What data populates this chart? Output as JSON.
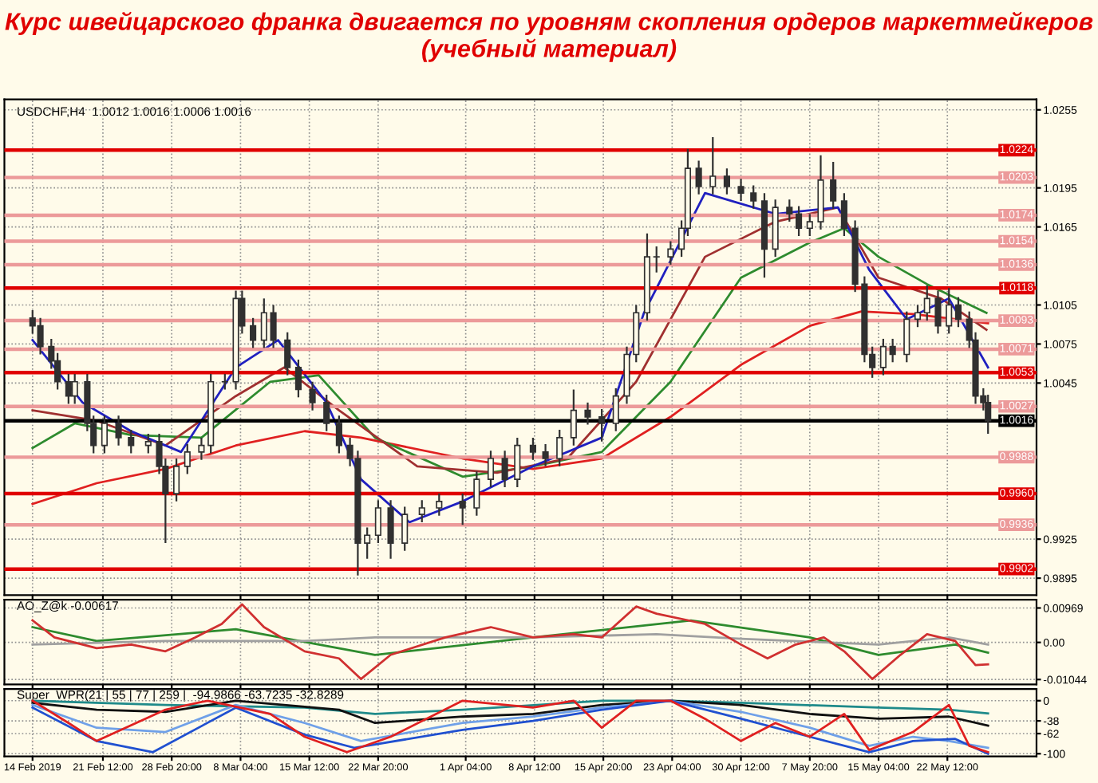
{
  "chart_data": [
    {
      "type": "candlestick",
      "title": "Курс швейцарского франка двигается по уровням скопления ордеров маркетмейкеров (учебный материал)",
      "annotations": [
        "USDCHF,H4  1.0012 1.0016 1.0006 1.0016"
      ],
      "color": "#303030",
      "grid": true,
      "tick_labels": "y",
      "x": [
        "2019-02-14T00:00",
        "2019-02-14T20:00",
        "2019-02-16T00:00",
        "2019-02-16T16:00",
        "2019-02-17T20:00",
        "2019-02-18T12:00",
        "2019-02-19T20:00",
        "2019-02-20T12:00",
        "2019-02-21T16:00",
        "2019-02-23T04:00",
        "2019-02-24T12:00",
        "2019-02-26T08:00",
        "2019-02-27T12:00",
        "2019-02-28T04:00",
        "2019-03-01T08:00",
        "2019-03-02T12:00",
        "2019-03-04T00:00",
        "2019-03-05T00:00",
        "2019-03-06T12:00",
        "2019-03-07T16:00",
        "2019-03-08T08:00",
        "2019-03-09T12:00",
        "2019-03-10T16:00",
        "2019-03-11T16:00",
        "2019-03-13T04:00",
        "2019-03-14T08:00",
        "2019-03-15T20:00",
        "2019-03-17T08:00",
        "2019-03-18T16:00",
        "2019-03-19T20:00",
        "2019-03-20T16:00",
        "2019-03-21T16:00",
        "2019-03-22T20:00",
        "2019-03-24T04:00",
        "2019-03-25T16:00",
        "2019-03-27T12:00",
        "2019-03-29T08:00",
        "2019-03-31T20:00",
        "2019-04-02T08:00",
        "2019-04-03T20:00",
        "2019-04-05T08:00",
        "2019-04-06T16:00",
        "2019-04-08T08:00",
        "2019-04-09T16:00",
        "2019-04-11T04:00",
        "2019-04-12T16:00",
        "2019-04-14T04:00",
        "2019-04-15T16:00",
        "2019-04-17T04:00",
        "2019-04-18T08:00",
        "2019-04-19T08:00",
        "2019-04-20T12:00",
        "2019-04-21T12:00",
        "2019-04-23T00:00",
        "2019-04-24T04:00",
        "2019-04-24T20:00",
        "2019-04-26T00:00",
        "2019-04-27T12:00",
        "2019-04-29T00:00",
        "2019-04-30T12:00",
        "2019-05-01T20:00",
        "2019-05-03T00:00",
        "2019-05-04T04:00",
        "2019-05-05T16:00",
        "2019-05-06T16:00",
        "2019-05-07T20:00",
        "2019-05-09T00:00",
        "2019-05-10T08:00",
        "2019-05-11T12:00",
        "2019-05-12T16:00",
        "2019-05-13T16:00",
        "2019-05-14T12:00",
        "2019-05-15T16:00",
        "2019-05-16T16:00",
        "2019-05-18T04:00",
        "2019-05-19T08:00",
        "2019-05-20T08:00",
        "2019-05-21T12:00",
        "2019-05-22T16:00",
        "2019-05-23T16:00",
        "2019-05-24T20:00",
        "2019-05-25T12:00",
        "2019-05-26T08:00",
        "2019-05-26T20:00"
      ],
      "ohlc": [
        [
          1.0095,
          1.0101,
          1.0083,
          1.0089
        ],
        [
          1.0089,
          1.0095,
          1.0067,
          1.0073
        ],
        [
          1.0073,
          1.0079,
          1.0056,
          1.0062
        ],
        [
          1.0062,
          1.0068,
          1.004,
          1.0046
        ],
        [
          1.0046,
          1.0052,
          1.0029,
          1.0035
        ],
        [
          1.0035,
          1.0052,
          1.0029,
          1.0046
        ],
        [
          1.0046,
          1.0052,
          1.0008,
          1.0014
        ],
        [
          1.0014,
          1.002,
          0.9991,
          0.9997
        ],
        [
          0.9997,
          1.002,
          0.9991,
          1.0014
        ],
        [
          1.0014,
          1.002,
          0.9997,
          1.0003
        ],
        [
          1.0003,
          1.0009,
          0.9991,
          0.9997
        ],
        [
          0.9997,
          1.0006,
          0.9991,
          1.0
        ],
        [
          1.0,
          1.0006,
          0.9975,
          0.9981
        ],
        [
          0.9981,
          0.9987,
          0.9922,
          0.996
        ],
        [
          0.996,
          0.9987,
          0.9954,
          0.9981
        ],
        [
          0.9981,
          0.9998,
          0.9975,
          0.9992
        ],
        [
          0.9992,
          1.0003,
          0.9986,
          0.9997
        ],
        [
          0.9997,
          1.0052,
          0.9991,
          1.0046
        ],
        [
          1.0046,
          1.0052,
          1.004,
          1.0046
        ],
        [
          1.0046,
          1.0116,
          1.004,
          1.011
        ],
        [
          1.011,
          1.0116,
          1.0083,
          1.0089
        ],
        [
          1.0089,
          1.0095,
          1.0072,
          1.0078
        ],
        [
          1.0078,
          1.011,
          1.0072,
          1.0099
        ],
        [
          1.0099,
          1.0105,
          1.0072,
          1.0078
        ],
        [
          1.0078,
          1.0084,
          1.0051,
          1.0057
        ],
        [
          1.0057,
          1.0063,
          1.0034,
          1.004
        ],
        [
          1.004,
          1.0046,
          1.0024,
          1.003
        ],
        [
          1.003,
          1.0036,
          1.0008,
          1.0014
        ],
        [
          1.0014,
          1.002,
          0.9991,
          0.9997
        ],
        [
          0.9997,
          1.0003,
          0.9981,
          0.9987
        ],
        [
          0.9987,
          0.9993,
          0.9897,
          0.9922
        ],
        [
          0.9922,
          0.9934,
          0.991,
          0.9928
        ],
        [
          0.9928,
          0.9955,
          0.9922,
          0.9949
        ],
        [
          0.9949,
          0.9955,
          0.991,
          0.9922
        ],
        [
          0.9922,
          0.995,
          0.9916,
          0.9944
        ],
        [
          0.9944,
          0.9955,
          0.9938,
          0.9949
        ],
        [
          0.9949,
          0.996,
          0.9943,
          0.9954
        ],
        [
          0.9954,
          0.996,
          0.9936,
          0.9949
        ],
        [
          0.9949,
          0.9977,
          0.9943,
          0.9971
        ],
        [
          0.9971,
          0.9993,
          0.9965,
          0.9987
        ],
        [
          0.9987,
          0.9993,
          0.9965,
          0.9971
        ],
        [
          0.9971,
          1.0003,
          0.9965,
          0.9997
        ],
        [
          0.9997,
          1.0003,
          0.9986,
          0.9992
        ],
        [
          0.9992,
          0.9998,
          0.9981,
          0.9987
        ],
        [
          0.9987,
          1.0009,
          0.9981,
          1.0003
        ],
        [
          1.0003,
          1.004,
          0.9997,
          1.0024
        ],
        [
          1.0024,
          1.003,
          1.0013,
          1.0019
        ],
        [
          1.0019,
          1.0025,
          1.0,
          1.0014
        ],
        [
          1.0014,
          1.0041,
          1.0008,
          1.0035
        ],
        [
          1.0035,
          1.0073,
          1.0029,
          1.0067
        ],
        [
          1.0067,
          1.0105,
          1.0061,
          1.0099
        ],
        [
          1.0099,
          1.016,
          1.0093,
          1.0142
        ],
        [
          1.0142,
          1.015,
          1.013,
          1.0142
        ],
        [
          1.0142,
          1.0154,
          1.0136,
          1.0148
        ],
        [
          1.0148,
          1.017,
          1.0142,
          1.0164
        ],
        [
          1.0164,
          1.0225,
          1.0158,
          1.021
        ],
        [
          1.021,
          1.0216,
          1.019,
          1.0196
        ],
        [
          1.0196,
          1.0234,
          1.019,
          1.0204
        ],
        [
          1.0204,
          1.021,
          1.019,
          1.0196
        ],
        [
          1.0196,
          1.0202,
          1.0185,
          1.0191
        ],
        [
          1.0191,
          1.0197,
          1.0179,
          1.0185
        ],
        [
          1.0185,
          1.0191,
          1.0126,
          1.0148
        ],
        [
          1.0148,
          1.0186,
          1.0142,
          1.018
        ],
        [
          1.018,
          1.0186,
          1.0169,
          1.0175
        ],
        [
          1.0175,
          1.0181,
          1.0158,
          1.0164
        ],
        [
          1.0164,
          1.0175,
          1.0158,
          1.0169
        ],
        [
          1.0169,
          1.022,
          1.0163,
          1.0201
        ],
        [
          1.0201,
          1.0215,
          1.0179,
          1.0185
        ],
        [
          1.0185,
          1.0191,
          1.0158,
          1.0164
        ],
        [
          1.0164,
          1.017,
          1.0115,
          1.0121
        ],
        [
          1.0121,
          1.0127,
          1.0061,
          1.0067
        ],
        [
          1.0067,
          1.0073,
          1.0049,
          1.0057
        ],
        [
          1.0057,
          1.0079,
          1.0051,
          1.0073
        ],
        [
          1.0073,
          1.0079,
          1.0061,
          1.0067
        ],
        [
          1.0067,
          1.01,
          1.0061,
          1.0094
        ],
        [
          1.0094,
          1.0105,
          1.0088,
          1.0099
        ],
        [
          1.0099,
          1.012,
          1.0093,
          1.011
        ],
        [
          1.011,
          1.0116,
          1.0083,
          1.0089
        ],
        [
          1.0089,
          1.0118,
          1.0083,
          1.0105
        ],
        [
          1.0105,
          1.0111,
          1.0088,
          1.0094
        ],
        [
          1.0094,
          1.01,
          1.0072,
          1.0078
        ],
        [
          1.0078,
          1.0084,
          1.0029,
          1.0035
        ],
        [
          1.0035,
          1.0041,
          1.0024,
          1.003
        ],
        [
          1.003,
          1.0036,
          1.0006,
          1.0016
        ]
      ],
      "series": [
        {
          "type": "line",
          "color": "#e02020",
          "x": [
            "2019-02-14T00:00",
            "2019-02-20T20:00",
            "2019-02-28T04:00",
            "2019-03-07T16:00",
            "2019-03-15T00:00",
            "2019-03-21T00:00",
            "2019-03-31T20:00",
            "2019-04-08T08:00",
            "2019-04-15T16:00",
            "2019-04-23T00:00",
            "2019-04-30T12:00",
            "2019-05-07T20:00",
            "2019-05-13T08:00",
            "2019-05-18T20:00",
            "2019-05-26T20:00"
          ],
          "values": [
            0.9952,
            0.9968,
            0.9979,
            0.9997,
            1.0008,
            1.0003,
            0.9987,
            0.9979,
            0.9987,
            1.0019,
            1.0059,
            1.0089,
            1.01,
            1.0098,
            1.0091
          ]
        },
        {
          "type": "line",
          "color": "#2e8b2e",
          "x": [
            "2019-02-14T00:00",
            "2019-02-18T12:00",
            "2019-02-24T12:00",
            "2019-03-04T00:00",
            "2019-03-11T08:00",
            "2019-03-16T12:00",
            "2019-03-22T12:00",
            "2019-03-31T20:00",
            "2019-04-08T08:00",
            "2019-04-15T16:00",
            "2019-04-23T00:00",
            "2019-04-30T12:00",
            "2019-05-07T20:00",
            "2019-05-11T12:00",
            "2019-05-15T04:00",
            "2019-05-20T08:00",
            "2019-05-26T16:00"
          ],
          "values": [
            0.9995,
            1.0014,
            1.0005,
            1.0003,
            1.0046,
            1.0051,
            1.0003,
            0.9973,
            0.9981,
            0.9992,
            1.0046,
            1.0126,
            1.0153,
            1.0164,
            1.0142,
            1.0121,
            1.0099
          ]
        },
        {
          "type": "line",
          "color": "#a03030",
          "x": [
            "2019-02-14T00:00",
            "2019-02-20T20:00",
            "2019-02-28T04:00",
            "2019-03-07T16:00",
            "2019-03-12T20:00",
            "2019-03-18T16:00",
            "2019-03-27T00:00",
            "2019-04-04T12:00",
            "2019-04-12T00:00",
            "2019-04-19T08:00",
            "2019-04-26T16:00",
            "2019-05-04T04:00",
            "2019-05-10T20:00",
            "2019-05-15T04:00",
            "2019-05-21T20:00",
            "2019-05-26T16:00"
          ],
          "values": [
            1.0024,
            1.0016,
            0.9997,
            1.0035,
            1.0057,
            1.0024,
            0.9981,
            0.9976,
            0.9987,
            1.0046,
            1.0142,
            1.0169,
            1.018,
            1.0126,
            1.011,
            1.0086
          ]
        },
        {
          "type": "line",
          "color": "#2020c0",
          "x": [
            "2019-02-14T00:00",
            "2019-02-19T08:00",
            "2019-02-24T12:00",
            "2019-03-01T20:00",
            "2019-03-07T16:00",
            "2019-03-12T04:00",
            "2019-03-17T08:00",
            "2019-03-21T00:00",
            "2019-03-26T04:00",
            "2019-03-31T20:00",
            "2019-04-08T08:00",
            "2019-04-15T16:00",
            "2019-04-20T04:00",
            "2019-04-26T16:00",
            "2019-05-04T04:00",
            "2019-05-10T20:00",
            "2019-05-14T04:00",
            "2019-05-18T04:00",
            "2019-05-22T16:00",
            "2019-05-26T20:00"
          ],
          "values": [
            1.0078,
            1.003,
            1.0008,
            0.9992,
            1.0057,
            1.0078,
            1.003,
            0.9971,
            0.9938,
            0.9954,
            0.9981,
            1.0003,
            1.0099,
            1.0191,
            1.0175,
            1.018,
            1.0132,
            1.0094,
            1.011,
            1.0057
          ]
        }
      ],
      "ref_lines": [
        {
          "axis": "y",
          "value": 1.0224,
          "label": "1.0224",
          "color": "#e00000"
        },
        {
          "axis": "y",
          "value": 1.0203,
          "label": "1.0203",
          "color": "#ec9a9a"
        },
        {
          "axis": "y",
          "value": 1.0174,
          "label": "1.0174",
          "color": "#ec9a9a"
        },
        {
          "axis": "y",
          "value": 1.0154,
          "label": "1.0154",
          "color": "#ec9a9a"
        },
        {
          "axis": "y",
          "value": 1.0136,
          "label": "1.0136",
          "color": "#ec9a9a"
        },
        {
          "axis": "y",
          "value": 1.0118,
          "label": "1.0118",
          "color": "#e00000"
        },
        {
          "axis": "y",
          "value": 1.0093,
          "label": "1.0093",
          "color": "#ec9a9a"
        },
        {
          "axis": "y",
          "value": 1.0071,
          "label": "1.0071",
          "color": "#ec9a9a"
        },
        {
          "axis": "y",
          "value": 1.0053,
          "label": "1.0053",
          "color": "#e00000"
        },
        {
          "axis": "y",
          "value": 1.0027,
          "label": "1.0027",
          "color": "#ec9a9a"
        },
        {
          "axis": "y",
          "value": 1.0016,
          "label": "1.0016",
          "color": "#000000"
        },
        {
          "axis": "y",
          "value": 0.9988,
          "label": "0.9988",
          "color": "#ec9a9a"
        },
        {
          "axis": "y",
          "value": 0.996,
          "label": "0.9960",
          "color": "#e00000"
        },
        {
          "axis": "y",
          "value": 0.9936,
          "label": "0.9936",
          "color": "#ec9a9a"
        },
        {
          "axis": "y",
          "value": 0.9902,
          "label": "0.9902",
          "color": "#e00000"
        }
      ],
      "xlim": [
        "2019-02-11T00:00",
        "2019-06-01T00:00"
      ],
      "xticks": [
        "2019-02-14T00:00",
        "2019-02-21T12:00",
        "2019-02-28T20:00",
        "2019-03-08T04:00",
        "2019-03-15T12:00",
        "2019-03-22T20:00",
        "2019-04-01T04:00",
        "2019-04-08T12:00",
        "2019-04-15T20:00",
        "2019-04-23T04:00",
        "2019-04-30T12:00",
        "2019-05-07T20:00",
        "2019-05-15T04:00",
        "2019-05-22T12:00"
      ],
      "ylim": [
        0.9882,
        1.0263
      ],
      "yticks": [
        1.0255,
        1.0195,
        1.0165,
        1.0105,
        1.0075,
        1.0045,
        0.9925,
        0.9895
      ]
    },
    {
      "type": "line",
      "annotations": [
        "AO_Z@k -0.00617"
      ],
      "grid": true,
      "tick_labels": "y",
      "series": [
        {
          "color": "#2e8b2e",
          "x": [
            "2019-02-14T00:00",
            "2019-02-20T20:00",
            "2019-03-07T16:00",
            "2019-03-22T12:00",
            "2019-04-08T08:00",
            "2019-04-25T04:00",
            "2019-05-07T20:00",
            "2019-05-15T04:00",
            "2019-05-23T08:00",
            "2019-05-26T20:00"
          ],
          "values": [
            0.0043,
            0.0004,
            0.0037,
            -0.0035,
            0.0014,
            0.0062,
            0.0014,
            -0.0035,
            -0.0006,
            -0.0029
          ]
        },
        {
          "color": "#a0a0a0",
          "x": [
            "2019-02-14T00:00",
            "2019-02-28T04:00",
            "2019-03-15T00:00",
            "2019-03-22T12:00",
            "2019-04-08T08:00",
            "2019-04-21T12:00",
            "2019-04-30T12:00",
            "2019-05-15T04:00",
            "2019-05-22T16:00",
            "2019-05-26T20:00"
          ],
          "values": [
            -0.0006,
            0.0004,
            0.0004,
            0.0014,
            0.0014,
            0.0023,
            0.001,
            -0.0006,
            0.0014,
            -0.0006
          ]
        },
        {
          "color": "#d03030",
          "x": [
            "2019-02-14T00:00",
            "2019-02-16T08:00",
            "2019-02-20T20:00",
            "2019-02-24T12:00",
            "2019-02-28T04:00",
            "2019-03-03T08:00",
            "2019-03-06T04:00",
            "2019-03-08T08:00",
            "2019-03-10T16:00",
            "2019-03-15T00:00",
            "2019-03-18T16:00",
            "2019-03-21T00:00",
            "2019-03-24T04:00",
            "2019-03-30T00:00",
            "2019-04-03T20:00",
            "2019-04-08T08:00",
            "2019-04-12T16:00",
            "2019-04-15T16:00",
            "2019-04-19T08:00",
            "2019-04-21T12:00",
            "2019-04-26T16:00",
            "2019-04-30T12:00",
            "2019-05-03T08:00",
            "2019-05-06T08:00",
            "2019-05-09T08:00",
            "2019-05-11T12:00",
            "2019-05-14T12:00",
            "2019-05-17T12:00",
            "2019-05-20T08:00",
            "2019-05-23T08:00",
            "2019-05-25T12:00",
            "2019-05-26T20:00"
          ],
          "values": [
            0.0062,
            0.0014,
            -0.0016,
            -0.0006,
            -0.0025,
            0.0014,
            0.0052,
            0.0107,
            0.0043,
            -0.0025,
            -0.0045,
            -0.0103,
            -0.0035,
            0.0014,
            0.0043,
            0.0014,
            0.0023,
            0.0014,
            0.0101,
            0.0081,
            0.0052,
            -0.0006,
            -0.0045,
            -0.0006,
            0.0014,
            -0.0025,
            -0.0103,
            -0.0035,
            0.0023,
            0.0004,
            -0.0064,
            -0.0062
          ]
        }
      ],
      "xlim": [
        "2019-02-11T00:00",
        "2019-06-01T00:00"
      ],
      "xticks": [
        "2019-02-14T00:00",
        "2019-02-21T12:00",
        "2019-02-28T20:00",
        "2019-03-08T04:00",
        "2019-03-15T12:00",
        "2019-03-22T20:00",
        "2019-04-01T04:00",
        "2019-04-08T12:00",
        "2019-04-15T20:00",
        "2019-04-23T04:00",
        "2019-04-30T12:00",
        "2019-05-07T20:00",
        "2019-05-15T04:00",
        "2019-05-22T12:00"
      ],
      "ylim": [
        -0.0118,
        0.012
      ],
      "yticks": [
        0.00969,
        {
          "value": 0,
          "label": "0.00"
        },
        -0.01044
      ]
    },
    {
      "type": "line",
      "annotations": [
        "Super_WPR(21 | 55 | 77 | 259 |  -94.9866 -63.7235 -32.8289"
      ],
      "grid": true,
      "series": [
        {
          "color": "#1e8a8a",
          "x": [
            "2019-02-14T00:00",
            "2019-02-28T04:00",
            "2019-03-15T00:00",
            "2019-03-22T12:00",
            "2019-03-31T20:00",
            "2019-04-15T16:00",
            "2019-04-23T00:00",
            "2019-04-30T12:00",
            "2019-05-15T04:00",
            "2019-05-22T16:00",
            "2019-05-26T20:00"
          ],
          "values": [
            0,
            -8,
            -13,
            -25,
            -17,
            0,
            0,
            -4,
            -13,
            -17,
            -24
          ]
        },
        {
          "color": "#101010",
          "x": [
            "2019-02-14T00:00",
            "2019-02-20T20:00",
            "2019-02-28T04:00",
            "2019-03-07T16:00",
            "2019-03-18T16:00",
            "2019-03-22T12:00",
            "2019-03-31T20:00",
            "2019-04-08T08:00",
            "2019-04-15T16:00",
            "2019-04-23T00:00",
            "2019-04-30T12:00",
            "2019-05-07T20:00",
            "2019-05-15T04:00",
            "2019-05-22T16:00",
            "2019-05-26T20:00"
          ],
          "values": [
            -4,
            -17,
            -21,
            0,
            -17,
            -42,
            -30,
            -25,
            -8,
            0,
            -8,
            -25,
            -34,
            -30,
            -47
          ]
        },
        {
          "color": "#6fa0e8",
          "x": [
            "2019-02-14T00:00",
            "2019-02-20T20:00",
            "2019-02-28T04:00",
            "2019-03-07T16:00",
            "2019-03-15T00:00",
            "2019-03-21T00:00",
            "2019-03-31T20:00",
            "2019-04-08T08:00",
            "2019-04-15T16:00",
            "2019-04-23T00:00",
            "2019-04-30T12:00",
            "2019-05-07T20:00",
            "2019-05-14T04:00",
            "2019-05-18T20:00",
            "2019-05-22T16:00",
            "2019-05-26T20:00"
          ],
          "values": [
            -8,
            -51,
            -59,
            -8,
            -42,
            -76,
            -42,
            -30,
            -13,
            0,
            -21,
            -51,
            -85,
            -68,
            -76,
            -89
          ]
        },
        {
          "color": "#2050d0",
          "x": [
            "2019-02-14T00:00",
            "2019-02-20T20:00",
            "2019-02-26T20:00",
            "2019-03-07T16:00",
            "2019-03-15T00:00",
            "2019-03-20T08:00",
            "2019-03-31T20:00",
            "2019-04-08T08:00",
            "2019-04-15T16:00",
            "2019-04-23T00:00",
            "2019-04-30T12:00",
            "2019-05-07T20:00",
            "2019-05-14T04:00",
            "2019-05-18T20:00",
            "2019-05-23T08:00",
            "2019-05-26T20:00"
          ],
          "values": [
            -13,
            -76,
            -97,
            -13,
            -64,
            -89,
            -55,
            -38,
            -17,
            0,
            -34,
            -68,
            -97,
            -76,
            -72,
            -100
          ]
        },
        {
          "color": "#e02020",
          "x": [
            "2019-02-14T00:00",
            "2019-02-17T20:00",
            "2019-02-20T20:00",
            "2019-02-28T04:00",
            "2019-03-04T16:00",
            "2019-03-11T08:00",
            "2019-03-15T00:00",
            "2019-03-19T12:00",
            "2019-03-24T04:00",
            "2019-03-31T20:00",
            "2019-04-08T08:00",
            "2019-04-12T16:00",
            "2019-04-15T16:00",
            "2019-04-19T08:00",
            "2019-04-23T00:00",
            "2019-04-26T16:00",
            "2019-04-30T12:00",
            "2019-05-04T04:00",
            "2019-05-07T20:00",
            "2019-05-11T12:00",
            "2019-05-14T04:00",
            "2019-05-18T20:00",
            "2019-05-22T16:00",
            "2019-05-24T20:00",
            "2019-05-26T20:00"
          ],
          "values": [
            0,
            -42,
            -76,
            -17,
            0,
            -25,
            -68,
            -97,
            -68,
            0,
            -13,
            0,
            -51,
            0,
            0,
            -34,
            -76,
            -42,
            -68,
            -25,
            -93,
            -59,
            -8,
            -85,
            -97
          ]
        }
      ],
      "xlim": [
        "2019-02-11T00:00",
        "2019-06-01T00:00"
      ],
      "xticks": [
        {
          "value": "2019-02-14T00:00",
          "label": "14 Feb 2019"
        },
        {
          "value": "2019-02-21T12:00",
          "label": "21 Feb 12:00"
        },
        {
          "value": "2019-02-28T20:00",
          "label": "28 Feb 20:00"
        },
        {
          "value": "2019-03-08T04:00",
          "label": "8 Mar 04:00"
        },
        {
          "value": "2019-03-15T12:00",
          "label": "15 Mar 12:00"
        },
        {
          "value": "2019-03-22T20:00",
          "label": "22 Mar 20:00"
        },
        {
          "value": "2019-04-01T04:00",
          "label": "1 Apr 04:00"
        },
        {
          "value": "2019-04-08T12:00",
          "label": "8 Apr 12:00"
        },
        {
          "value": "2019-04-15T20:00",
          "label": "15 Apr 20:00"
        },
        {
          "value": "2019-04-23T04:00",
          "label": "23 Apr 04:00"
        },
        {
          "value": "2019-04-30T12:00",
          "label": "30 Apr 12:00"
        },
        {
          "value": "2019-05-07T20:00",
          "label": "7 May 20:00"
        },
        {
          "value": "2019-05-15T04:00",
          "label": "15 May 04:00"
        },
        {
          "value": "2019-05-22T12:00",
          "label": "22 May 12:00"
        }
      ],
      "ylim": [
        -105,
        22
      ],
      "yticks": [
        0,
        -38,
        -62,
        -100
      ]
    }
  ]
}
